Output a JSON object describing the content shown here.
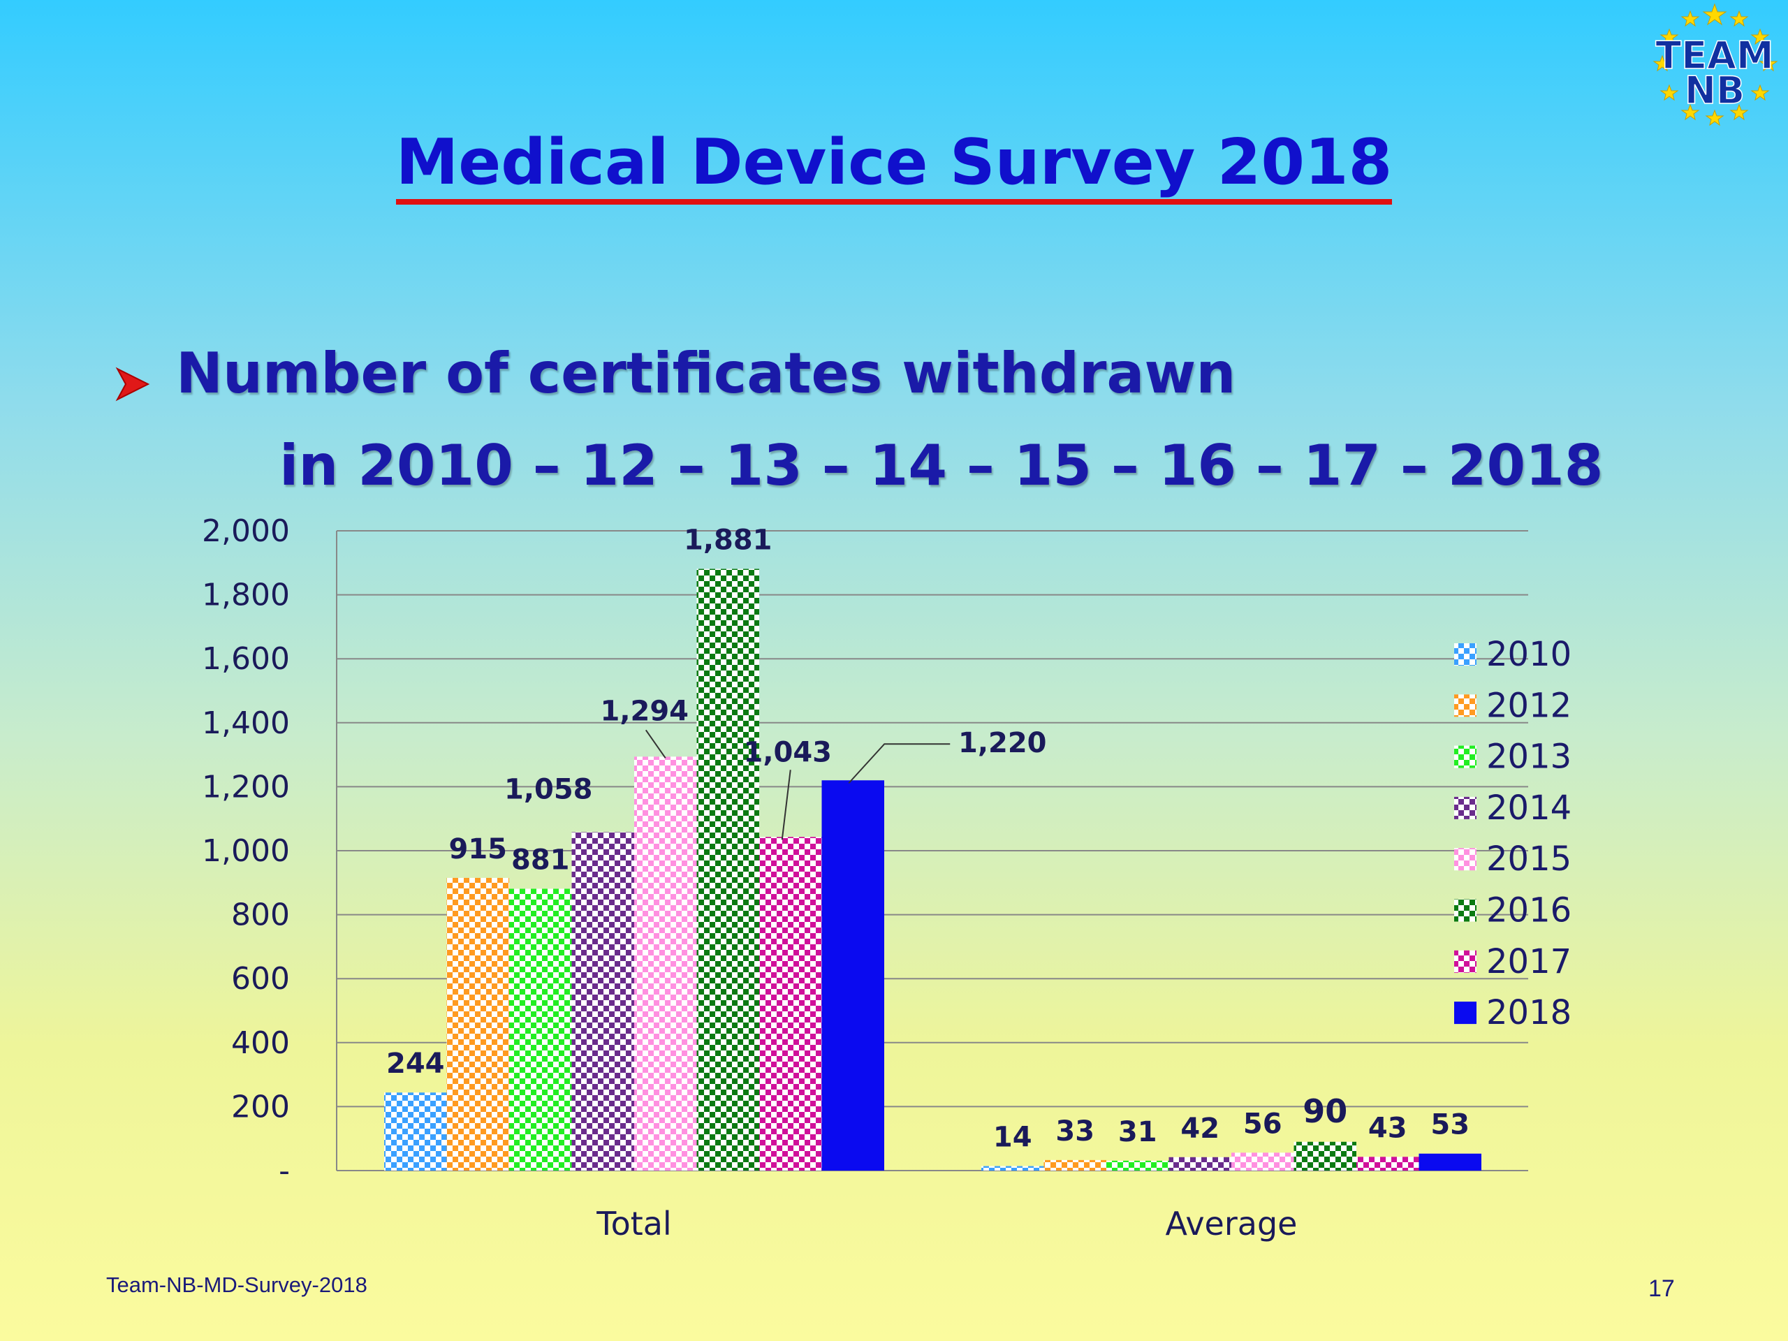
{
  "slide": {
    "title": "Medical Device Survey 2018",
    "bullet_arrow": "➢",
    "bullet_line1": "Number of certificates withdrawn",
    "bullet_line2": "in 2010 – 12 – 13 – 14 – 15 – 16 – 17 – 2018",
    "footer_left": "Team-NB-MD-Survey-2018",
    "page_number": "17",
    "logo_text_top": "TEAM",
    "logo_text_bottom": "NB"
  },
  "chart_data": {
    "type": "bar",
    "categories": [
      "Total",
      "Average"
    ],
    "series": [
      {
        "name": "2010",
        "values": [
          244,
          14
        ],
        "labels": [
          "244",
          "14"
        ],
        "color": "#3aa0ff",
        "pattern": "check"
      },
      {
        "name": "2012",
        "values": [
          915,
          33
        ],
        "labels": [
          "915",
          "33"
        ],
        "color": "#ff9a20",
        "pattern": "check"
      },
      {
        "name": "2013",
        "values": [
          881,
          31
        ],
        "labels": [
          "881",
          "31"
        ],
        "color": "#22ee22",
        "pattern": "check"
      },
      {
        "name": "2014",
        "values": [
          1058,
          42
        ],
        "labels": [
          "1,058",
          "42"
        ],
        "color": "#6a2c8c",
        "pattern": "check"
      },
      {
        "name": "2015",
        "values": [
          1294,
          56
        ],
        "labels": [
          "1,294",
          "56"
        ],
        "color": "#ff90e0",
        "pattern": "check"
      },
      {
        "name": "2016",
        "values": [
          1881,
          90
        ],
        "labels": [
          "1,881",
          "90"
        ],
        "color": "#0b7a12",
        "pattern": "check"
      },
      {
        "name": "2017",
        "values": [
          1043,
          43
        ],
        "labels": [
          "1,043",
          "43"
        ],
        "color": "#d0109a",
        "pattern": "check"
      },
      {
        "name": "2018",
        "values": [
          1220,
          53
        ],
        "labels": [
          "1,220",
          "53"
        ],
        "color": "#0a0af0",
        "pattern": "solid"
      }
    ],
    "y_ticks": [
      "-",
      "200",
      "400",
      "600",
      "800",
      "1,000",
      "1,200",
      "1,400",
      "1,600",
      "1,800",
      "2,000"
    ],
    "ylim": [
      0,
      2000
    ],
    "grid": true,
    "legend_position": "right"
  }
}
